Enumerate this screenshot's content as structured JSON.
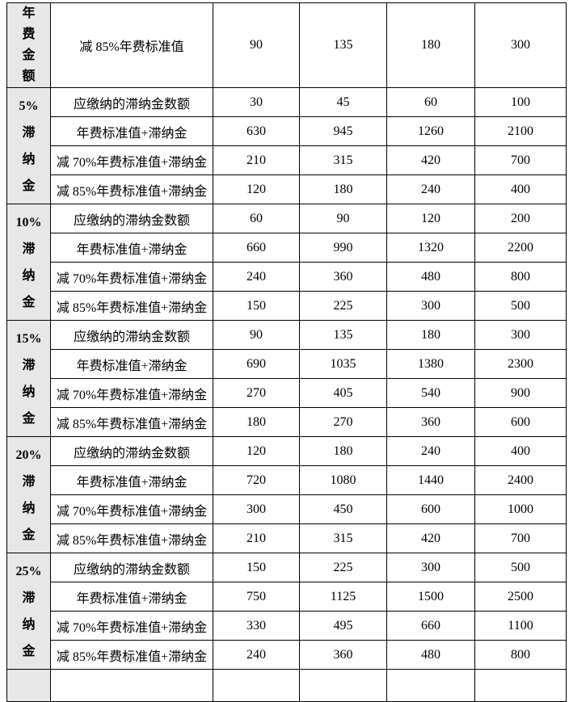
{
  "document": {
    "type": "fee-schedule-table",
    "border_color": "#000000",
    "group_header_bg": "#e7e7e7",
    "text_color": "#000000"
  },
  "table": {
    "groups": [
      {
        "label": "年\n费\n金\n额",
        "rows": [
          {
            "label": "减 85%年费标准值",
            "values": [
              "90",
              "135",
              "180",
              "300"
            ]
          }
        ]
      },
      {
        "label": "5%\n滞\n纳\n金",
        "rows": [
          {
            "label": "应缴纳的滞纳金数额",
            "values": [
              "30",
              "45",
              "60",
              "100"
            ]
          },
          {
            "label": "年费标准值+滞纳金",
            "values": [
              "630",
              "945",
              "1260",
              "2100"
            ]
          },
          {
            "label": "减 70%年费标准值+滞纳金",
            "values": [
              "210",
              "315",
              "420",
              "700"
            ]
          },
          {
            "label": "减 85%年费标准值+滞纳金",
            "values": [
              "120",
              "180",
              "240",
              "400"
            ]
          }
        ]
      },
      {
        "label": "10%\n滞\n纳\n金",
        "rows": [
          {
            "label": "应缴纳的滞纳金数额",
            "values": [
              "60",
              "90",
              "120",
              "200"
            ]
          },
          {
            "label": "年费标准值+滞纳金",
            "values": [
              "660",
              "990",
              "1320",
              "2200"
            ]
          },
          {
            "label": "减 70%年费标准值+滞纳金",
            "values": [
              "240",
              "360",
              "480",
              "800"
            ]
          },
          {
            "label": "减 85%年费标准值+滞纳金",
            "values": [
              "150",
              "225",
              "300",
              "500"
            ]
          }
        ]
      },
      {
        "label": "15%\n滞\n纳\n金",
        "rows": [
          {
            "label": "应缴纳的滞纳金数额",
            "values": [
              "90",
              "135",
              "180",
              "300"
            ]
          },
          {
            "label": "年费标准值+滞纳金",
            "values": [
              "690",
              "1035",
              "1380",
              "2300"
            ]
          },
          {
            "label": "减 70%年费标准值+滞纳金",
            "values": [
              "270",
              "405",
              "540",
              "900"
            ]
          },
          {
            "label": "减 85%年费标准值+滞纳金",
            "values": [
              "180",
              "270",
              "360",
              "600"
            ]
          }
        ]
      },
      {
        "label": "20%\n滞\n纳\n金",
        "rows": [
          {
            "label": "应缴纳的滞纳金数额",
            "values": [
              "120",
              "180",
              "240",
              "400"
            ]
          },
          {
            "label": "年费标准值+滞纳金",
            "values": [
              "720",
              "1080",
              "1440",
              "2400"
            ]
          },
          {
            "label": "减 70%年费标准值+滞纳金",
            "values": [
              "300",
              "450",
              "600",
              "1000"
            ]
          },
          {
            "label": "减 85%年费标准值+滞纳金",
            "values": [
              "210",
              "315",
              "420",
              "700"
            ]
          }
        ]
      },
      {
        "label": "25%\n滞\n纳\n金",
        "rows": [
          {
            "label": "应缴纳的滞纳金数额",
            "values": [
              "150",
              "225",
              "300",
              "500"
            ]
          },
          {
            "label": "年费标准值+滞纳金",
            "values": [
              "750",
              "1125",
              "1500",
              "2500"
            ]
          },
          {
            "label": "减 70%年费标准值+滞纳金",
            "values": [
              "330",
              "495",
              "660",
              "1100"
            ]
          },
          {
            "label": "减 85%年费标准值+滞纳金",
            "values": [
              "240",
              "360",
              "480",
              "800"
            ]
          }
        ]
      }
    ],
    "partial_bottom_row": {
      "visible": true,
      "values": [
        "",
        "",
        "",
        "",
        ""
      ]
    }
  }
}
